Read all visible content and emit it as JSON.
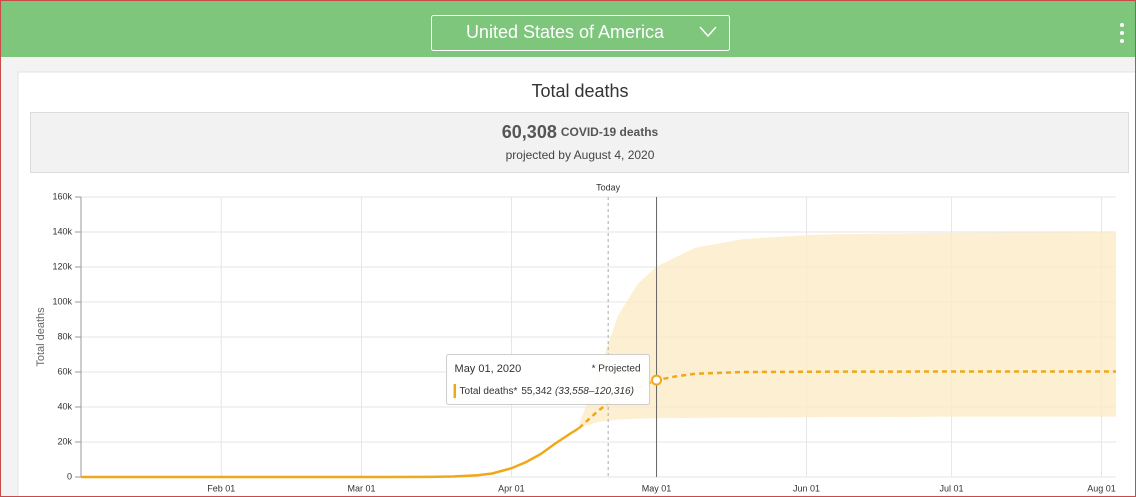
{
  "header": {
    "country": "United States of America"
  },
  "chart_data": {
    "type": "line",
    "title": "Total deaths",
    "summary": {
      "headline": "60,308",
      "headline_unit": "COVID-19 deaths",
      "note": "projected by August 4, 2020"
    },
    "ylabel": "Total deaths",
    "xlim": [
      3,
      217
    ],
    "xticks": [
      {
        "value": 32,
        "label": "Feb 01"
      },
      {
        "value": 61,
        "label": "Mar 01"
      },
      {
        "value": 92,
        "label": "Apr 01"
      },
      {
        "value": 122,
        "label": "May 01"
      },
      {
        "value": 153,
        "label": "Jun 01"
      },
      {
        "value": 183,
        "label": "Jul 01"
      },
      {
        "value": 214,
        "label": "Aug 01"
      }
    ],
    "ylim": [
      0,
      160000
    ],
    "yticks": [
      0,
      {
        "value": 20000,
        "label": "20k"
      },
      {
        "value": 40000,
        "label": "40k"
      },
      {
        "value": 60000,
        "label": "60k"
      },
      {
        "value": 80000,
        "label": "80k"
      },
      {
        "value": 100000,
        "label": "100k"
      },
      {
        "value": 120000,
        "label": "120k"
      },
      {
        "value": 140000,
        "label": "140k"
      },
      {
        "value": 160000,
        "label": "160k"
      }
    ],
    "grid": true,
    "today": {
      "label": "Today",
      "x": 112
    },
    "series": [
      {
        "color": "#f0a818",
        "dashed": false,
        "x": [
          3,
          60,
          75,
          80,
          85,
          88,
          90,
          92,
          95,
          98,
          101,
          104,
          106
        ],
        "values": [
          0,
          0,
          100,
          300,
          1000,
          2000,
          3500,
          5000,
          8500,
          13000,
          19000,
          24500,
          28000
        ]
      },
      {
        "color": "#f0a818",
        "dashed": true,
        "x": [
          106,
          110,
          114,
          118,
          122,
          126,
          130,
          140,
          160,
          190,
          217
        ],
        "values": [
          28000,
          38000,
          46000,
          51000,
          55342,
          57500,
          59000,
          60000,
          60200,
          60300,
          60308
        ]
      }
    ],
    "band": {
      "color": "#fdebc6",
      "x": [
        106,
        110,
        114,
        118,
        122,
        130,
        140,
        155,
        180,
        217
      ],
      "lower": [
        28000,
        31500,
        32800,
        33300,
        33558,
        33800,
        34000,
        34200,
        34400,
        34500
      ],
      "upper": [
        30000,
        60000,
        92000,
        110000,
        120316,
        131000,
        136000,
        138500,
        139500,
        140000
      ]
    },
    "tooltip": {
      "date": "May 01, 2020",
      "note": "* Projected",
      "series": "Total deaths*",
      "x": 122,
      "value": 55342,
      "value_label": "55,342",
      "range_label": "(33,558–120,316)"
    }
  }
}
